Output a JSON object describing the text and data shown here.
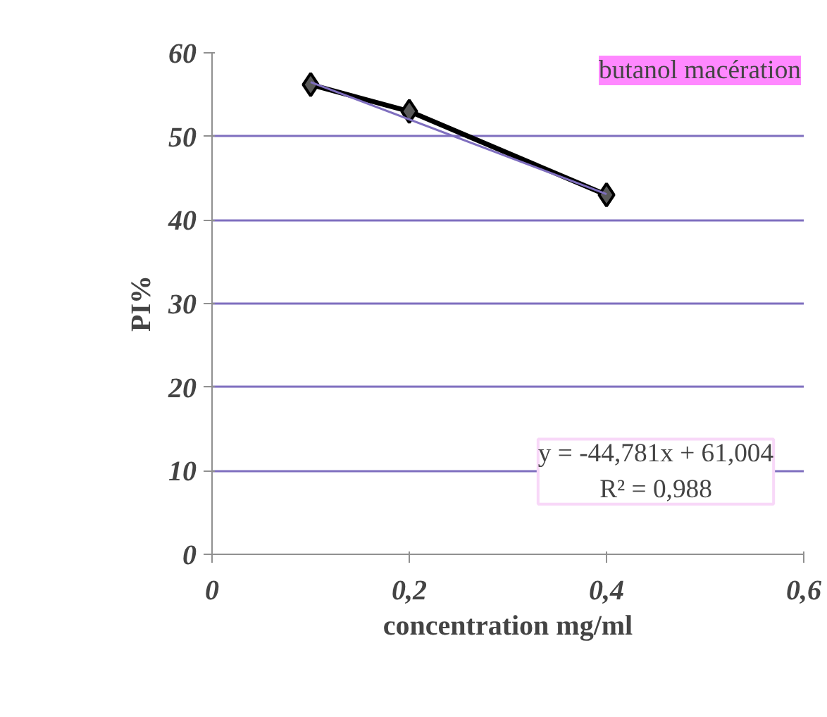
{
  "chart_data": {
    "type": "line",
    "title": "butanol macération",
    "xlabel": "concentration mg/ml",
    "ylabel": "PI%",
    "annotations": [
      "y = -44,781x + 61,004",
      "R² = 0,988"
    ],
    "series": [
      {
        "color": "#000000",
        "x": [
          0.1,
          0.2,
          0.4
        ],
        "values": [
          56.2,
          53,
          43
        ],
        "marker": "diamond"
      },
      {
        "color": "#7f6fbf",
        "x": [
          0.1,
          0.4
        ],
        "values": [
          56.5,
          43.1
        ],
        "marker": "none"
      }
    ],
    "xlim": [
      0,
      0.6
    ],
    "xticks": [
      {
        "value": 0,
        "label": "0"
      },
      {
        "value": 0.2,
        "label": "0,2"
      },
      {
        "value": 0.4,
        "label": "0,4"
      },
      {
        "value": 0.6,
        "label": "0,6"
      }
    ],
    "ylim": [
      0,
      60
    ],
    "yticks": [
      0,
      10,
      20,
      30,
      40,
      50,
      60
    ],
    "grid": "y",
    "line_style": "solid"
  }
}
